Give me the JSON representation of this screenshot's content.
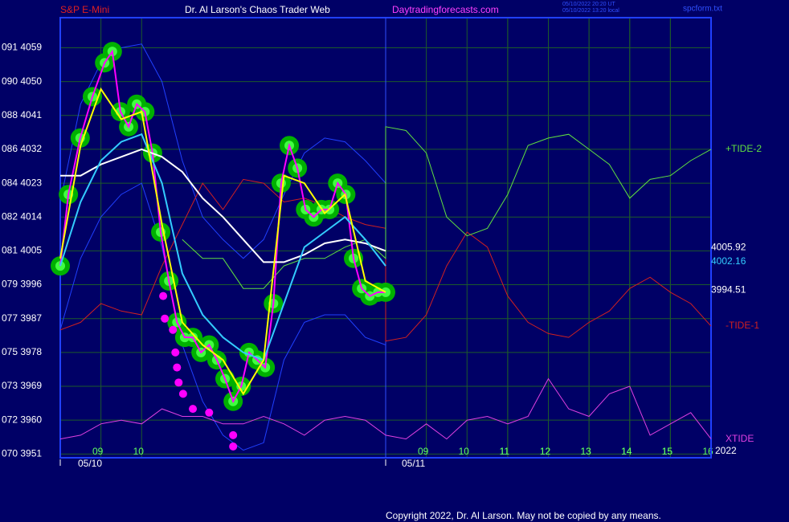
{
  "chart_data": {
    "type": "line",
    "symbol": "S&P E-Mini",
    "title": "Dr. Al Larson's Chaos Trader Web",
    "site": "Daytradingforecasts.com",
    "timestamps": [
      "05/10/2022 20:20 UT",
      "05/10/2022 13:20 local"
    ],
    "file": "spcform.txt",
    "dates": [
      "05/10",
      "05/11"
    ],
    "year": "2022",
    "copyright": "Copyright 2022, Dr. Al Larson. May not be copied by any means.",
    "xlim": [
      0,
      16
    ],
    "ylim": [
      3950,
      4067
    ],
    "grid": true,
    "xticks": [
      {
        "value": 1,
        "label": "09"
      },
      {
        "value": 2,
        "label": "10"
      },
      11,
      12,
      13,
      14,
      15,
      16,
      {
        "value": 9,
        "label": "09"
      },
      {
        "value": 10,
        "label": "10"
      },
      {
        "value": 11,
        "label": "11"
      },
      {
        "value": 12,
        "label": "12"
      },
      {
        "value": 13,
        "label": "13"
      },
      {
        "value": 14,
        "label": "14"
      },
      {
        "value": 15,
        "label": "15"
      }
    ],
    "yticks": [
      {
        "value": 4059,
        "label": "091 4059"
      },
      {
        "value": 4050,
        "label": "090 4050"
      },
      {
        "value": 4041,
        "label": "088 4041"
      },
      {
        "value": 4032,
        "label": "086 4032"
      },
      {
        "value": 4023,
        "label": "084 4023"
      },
      {
        "value": 4014,
        "label": "082 4014"
      },
      {
        "value": 4005,
        "label": "081 4005"
      },
      {
        "value": 3996,
        "label": "079 3996"
      },
      {
        "value": 3987,
        "label": "077 3987"
      },
      {
        "value": 3978,
        "label": "075 3978"
      },
      {
        "value": 3969,
        "label": "073 3969"
      },
      {
        "value": 3960,
        "label": "072 3960"
      },
      {
        "value": 3951,
        "label": "070 3951"
      }
    ],
    "series": [
      {
        "color": "#2040ff",
        "style": "line",
        "x": [
          0,
          0.5,
          1,
          1.5,
          2,
          2.5,
          3,
          3.5,
          4,
          4.5,
          5,
          5.5,
          6,
          6.5,
          7,
          7.5,
          8
        ],
        "values": [
          3984,
          4003,
          4014,
          4020,
          4023,
          4006,
          3980,
          3965,
          3956,
          3952,
          3954,
          3976,
          3986,
          3988,
          3988,
          3982,
          3980
        ]
      },
      {
        "color": "#2040ff",
        "style": "line",
        "x": [
          0,
          0.5,
          1,
          1.5,
          2,
          2.5,
          3,
          3.5,
          4,
          4.5,
          5,
          5.5,
          6,
          6.5,
          7,
          7.5,
          8
        ],
        "values": [
          4018,
          4044,
          4055,
          4059,
          4060,
          4050,
          4029,
          4014,
          4008,
          4003,
          4008,
          4020,
          4031,
          4035,
          4034,
          4029,
          4023
        ]
      },
      {
        "name": "-TIDE-1",
        "color": "#d02020",
        "style": "line",
        "x": [
          0,
          0.5,
          1,
          1.5,
          2,
          2.5,
          3,
          3.5,
          4,
          4.5,
          5,
          5.5,
          6,
          6.5,
          7,
          7.5,
          8,
          8,
          8.5,
          9,
          9.5,
          10,
          10.5,
          11,
          11.5,
          12,
          12.5,
          13,
          13.5,
          14,
          14.5,
          15,
          15.5,
          16
        ],
        "values": [
          3984,
          3986,
          3991,
          3989,
          3988,
          4001,
          4012,
          4023,
          4016,
          4024,
          4023,
          4018,
          4019,
          4017,
          4014,
          4012,
          4011,
          3981,
          3982,
          3988,
          4001,
          4010,
          4006,
          3993,
          3986,
          3983,
          3982,
          3986,
          3989,
          3995,
          3998,
          3994,
          3991,
          3985
        ]
      },
      {
        "name": "+TIDE-2",
        "color": "#60e040",
        "style": "line",
        "x": [
          3,
          3.5,
          4,
          4.5,
          5,
          5.5,
          6,
          6.5,
          7,
          7.5,
          8,
          8,
          8.5,
          9,
          9.5,
          10,
          10.5,
          11,
          11.5,
          12,
          12.5,
          13,
          13.5,
          14,
          14.5,
          15,
          15.5,
          16
        ],
        "values": [
          4008,
          4003,
          4003,
          3995,
          3995,
          4001,
          4003,
          4003,
          4006,
          4008,
          4003,
          4038,
          4037,
          4031,
          4014,
          4009,
          4011,
          4020,
          4033,
          4035,
          4036,
          4032,
          4028,
          4019,
          4024,
          4025,
          4029,
          4032
        ]
      },
      {
        "name": "XTIDE",
        "color": "#e040e0",
        "style": "line",
        "x": [
          0,
          0.5,
          1,
          1.5,
          2,
          2.5,
          3,
          3.5,
          4,
          4.5,
          5,
          5.5,
          6,
          6.5,
          7,
          7.5,
          8,
          8.5,
          9,
          9.5,
          10,
          10.5,
          11,
          11.5,
          12,
          12.5,
          13,
          13.5,
          14,
          14.5,
          15,
          15.5,
          16
        ],
        "values": [
          3955,
          3956,
          3959,
          3960,
          3959,
          3963,
          3961,
          3961,
          3959,
          3959,
          3961,
          3959,
          3956,
          3960,
          3961,
          3960,
          3956,
          3955,
          3959,
          3955,
          3960,
          3961,
          3959,
          3961,
          3971,
          3963,
          3961,
          3967,
          3969,
          3956,
          3959,
          3962,
          3955
        ]
      },
      {
        "color": "#ff00ff",
        "style": "blobs",
        "x": [
          0,
          0.2,
          0.49,
          0.79,
          1.09,
          1.28,
          1.48,
          1.68,
          1.88,
          2.08,
          2.27,
          2.47,
          2.67,
          2.87,
          3.06,
          3.26,
          3.46,
          3.66,
          3.85,
          4.05,
          4.25,
          4.45,
          4.64,
          4.84,
          5.04,
          5.24,
          5.43,
          5.63,
          5.83,
          6.03,
          6.23,
          6.42,
          6.62,
          6.82,
          7.02,
          7.21,
          7.41,
          7.61,
          7.81,
          8.0
        ],
        "values": [
          4001,
          4020,
          4035,
          4046,
          4055,
          4058,
          4042,
          4038,
          4044,
          4042,
          4031,
          4010,
          3997,
          3986,
          3982,
          3982,
          3978,
          3980,
          3976,
          3971,
          3965,
          3969,
          3978,
          3976,
          3974,
          3991,
          4023,
          4033,
          4027,
          4016,
          4014,
          4016,
          4016,
          4023,
          4020,
          4003,
          3995,
          3993,
          3994,
          3994
        ]
      },
      {
        "color": "#ffffff",
        "style": "line",
        "width": 2,
        "x": [
          0,
          0.5,
          1,
          1.5,
          2,
          2.5,
          3,
          3.5,
          4,
          4.5,
          5,
          5.5,
          6,
          6.5,
          7,
          7.5,
          8
        ],
        "values": [
          4025,
          4025,
          4028,
          4030,
          4032,
          4030,
          4026,
          4019,
          4014,
          4008,
          4002,
          4002,
          4004,
          4007,
          4008,
          4007,
          4005
        ]
      },
      {
        "color": "#33ccff",
        "style": "line",
        "width": 2,
        "x": [
          0,
          0.5,
          1,
          1.5,
          2,
          2.5,
          3,
          3.5,
          4,
          4.5,
          5,
          5.5,
          6,
          6.5,
          7,
          7.5,
          8
        ],
        "values": [
          4001,
          4018,
          4029,
          4034,
          4036,
          4023,
          3999,
          3988,
          3982,
          3978,
          3976,
          3991,
          4006,
          4010,
          4014,
          4008,
          4001
        ]
      },
      {
        "color": "#ffff00",
        "style": "line",
        "width": 2,
        "x": [
          0,
          0.5,
          1,
          1.5,
          2,
          2.5,
          3,
          3.5,
          4,
          4.5,
          5,
          5.5,
          6,
          6.5,
          7,
          7.5,
          8
        ],
        "values": [
          4003,
          4033,
          4048,
          4040,
          4042,
          4012,
          3986,
          3980,
          3976,
          3967,
          3976,
          4025,
          4023,
          4015,
          4020,
          3997,
          3994
        ]
      },
      {
        "color": "#ff00ff",
        "style": "dots",
        "x": [
          2.53,
          2.57,
          2.77,
          2.83,
          2.87,
          2.91,
          3.02,
          3.26,
          3.66,
          4.25,
          4.25
        ],
        "values": [
          3993,
          3987,
          3984,
          3978,
          3974,
          3970,
          3967,
          3963,
          3962,
          3956,
          3953
        ]
      }
    ],
    "now_x": 8,
    "end_labels": [
      {
        "value": 4005.92,
        "color": "#ffffff"
      },
      {
        "value": 4002.16,
        "color": "#33ccff"
      },
      {
        "value": 3994.51,
        "color": "#ffffff"
      }
    ]
  }
}
